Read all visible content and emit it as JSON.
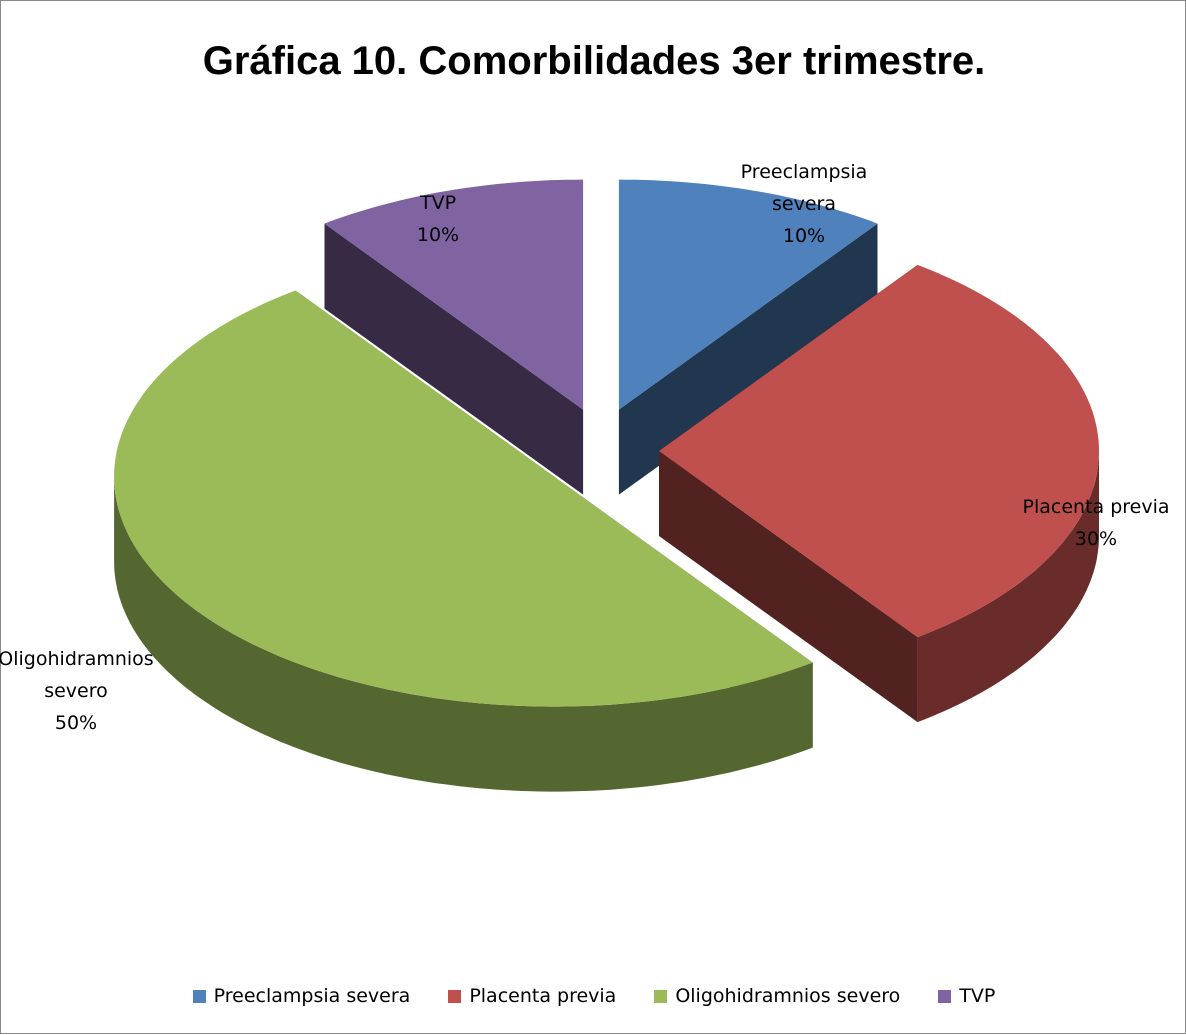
{
  "chart_data": {
    "type": "pie3d",
    "title": "Gráfica 10. Comorbilidades 3er trimestre.",
    "categories": [
      "Preeclampsia severa",
      "Placenta previa",
      "Oligohidramnios severo",
      "TVP"
    ],
    "values": [
      10,
      30,
      50,
      10
    ],
    "value_labels": [
      "10%",
      "30%",
      "50%",
      "10%"
    ],
    "colors": [
      "#4f81bd",
      "#c0504d",
      "#9bbb59",
      "#8064a2"
    ],
    "exploded": true,
    "legend": "bottom"
  }
}
